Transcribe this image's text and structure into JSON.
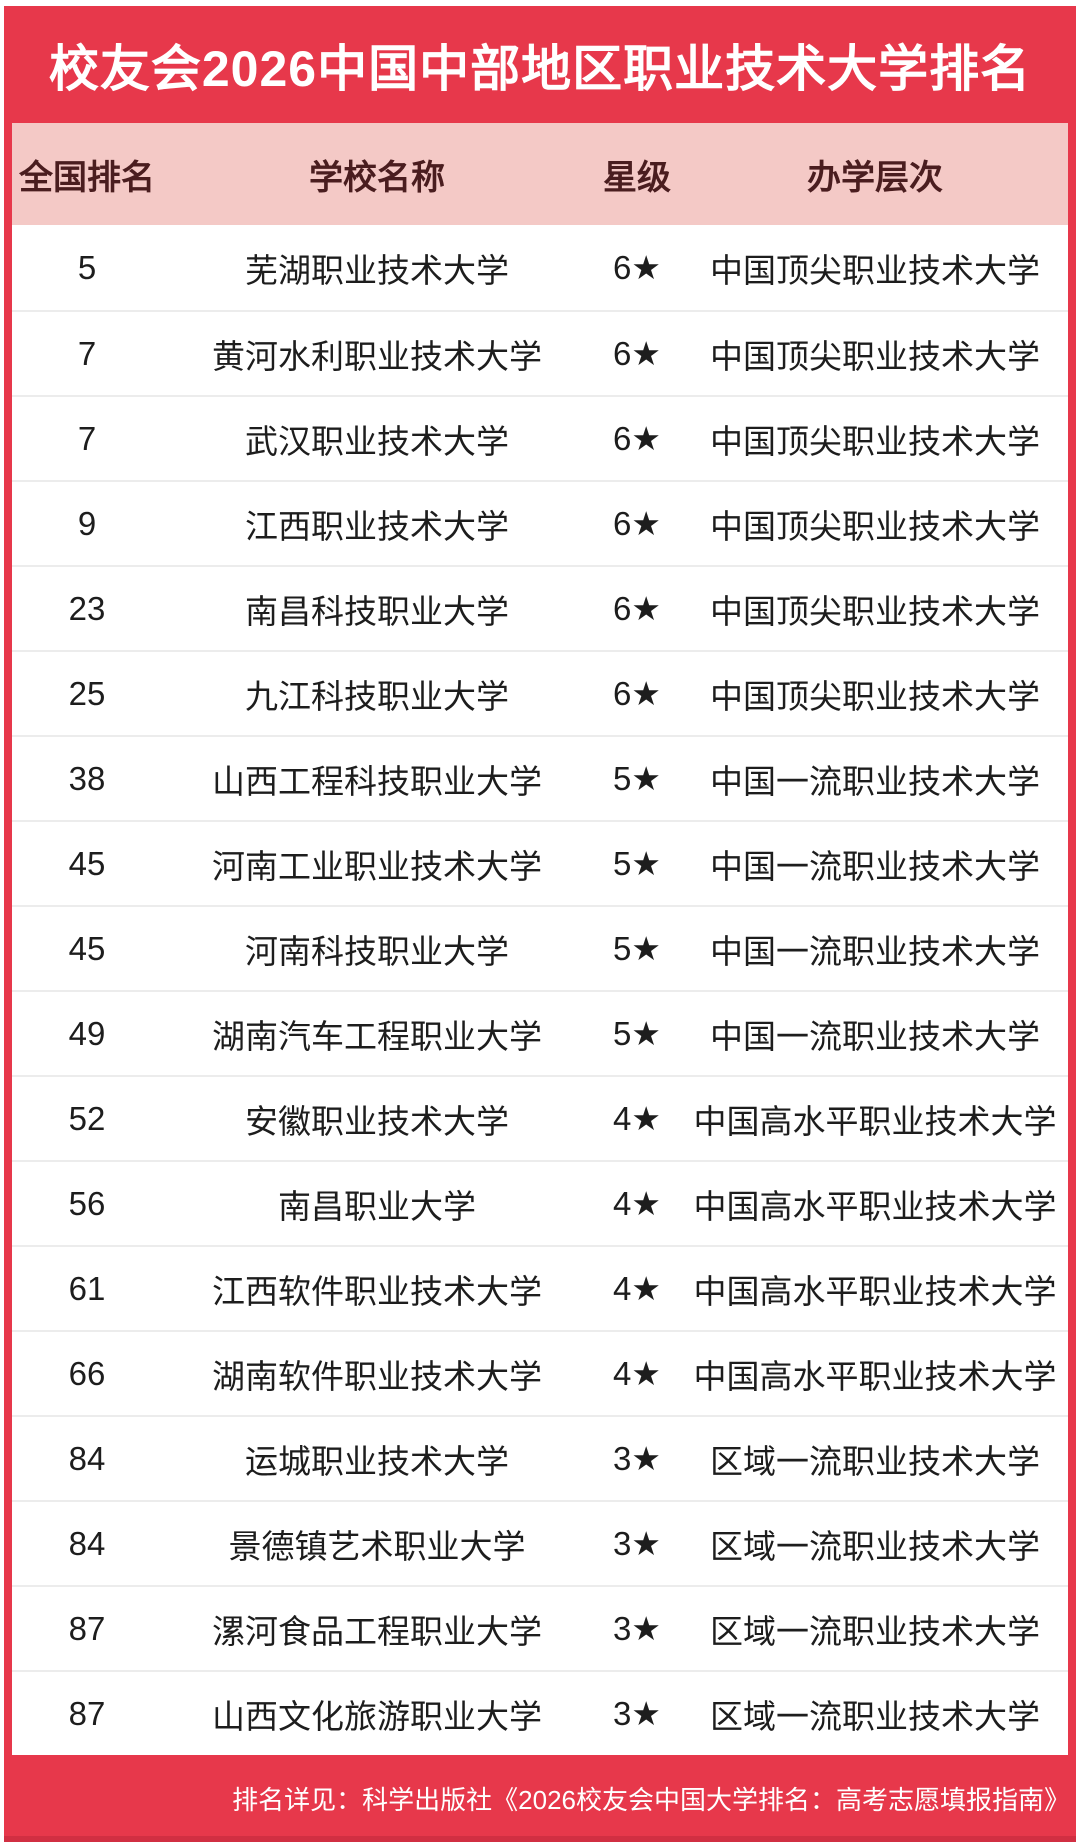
{
  "poster": {
    "title": "校友会2026中国中部地区职业技术大学排名",
    "footer_note": "排名详见：科学出版社《2026校友会中国大学排名：高考志愿填报指南》"
  },
  "colors": {
    "accent_red": "#E7384B",
    "header_pink": "#F4C9C6",
    "header_text": "#4A1D1F",
    "body_text": "#1D1D1D",
    "divider": "#ECECEC",
    "title_text": "#FFFFFF"
  },
  "table": {
    "columns": {
      "rank": "全国排名",
      "name": "学校名称",
      "star": "星级",
      "level": "办学层次"
    },
    "rows": [
      {
        "rank": "5",
        "name": "芜湖职业技术大学",
        "star": "6★",
        "level": "中国顶尖职业技术大学"
      },
      {
        "rank": "7",
        "name": "黄河水利职业技术大学",
        "star": "6★",
        "level": "中国顶尖职业技术大学"
      },
      {
        "rank": "7",
        "name": "武汉职业技术大学",
        "star": "6★",
        "level": "中国顶尖职业技术大学"
      },
      {
        "rank": "9",
        "name": "江西职业技术大学",
        "star": "6★",
        "level": "中国顶尖职业技术大学"
      },
      {
        "rank": "23",
        "name": "南昌科技职业大学",
        "star": "6★",
        "level": "中国顶尖职业技术大学"
      },
      {
        "rank": "25",
        "name": "九江科技职业大学",
        "star": "6★",
        "level": "中国顶尖职业技术大学"
      },
      {
        "rank": "38",
        "name": "山西工程科技职业大学",
        "star": "5★",
        "level": "中国一流职业技术大学"
      },
      {
        "rank": "45",
        "name": "河南工业职业技术大学",
        "star": "5★",
        "level": "中国一流职业技术大学"
      },
      {
        "rank": "45",
        "name": "河南科技职业大学",
        "star": "5★",
        "level": "中国一流职业技术大学"
      },
      {
        "rank": "49",
        "name": "湖南汽车工程职业大学",
        "star": "5★",
        "level": "中国一流职业技术大学"
      },
      {
        "rank": "52",
        "name": "安徽职业技术大学",
        "star": "4★",
        "level": "中国高水平职业技术大学"
      },
      {
        "rank": "56",
        "name": "南昌职业大学",
        "star": "4★",
        "level": "中国高水平职业技术大学"
      },
      {
        "rank": "61",
        "name": "江西软件职业技术大学",
        "star": "4★",
        "level": "中国高水平职业技术大学"
      },
      {
        "rank": "66",
        "name": "湖南软件职业技术大学",
        "star": "4★",
        "level": "中国高水平职业技术大学"
      },
      {
        "rank": "84",
        "name": "运城职业技术大学",
        "star": "3★",
        "level": "区域一流职业技术大学"
      },
      {
        "rank": "84",
        "name": "景德镇艺术职业大学",
        "star": "3★",
        "level": "区域一流职业技术大学"
      },
      {
        "rank": "87",
        "name": "漯河食品工程职业大学",
        "star": "3★",
        "level": "区域一流职业技术大学"
      },
      {
        "rank": "87",
        "name": "山西文化旅游职业大学",
        "star": "3★",
        "level": "区域一流职业技术大学"
      }
    ]
  }
}
